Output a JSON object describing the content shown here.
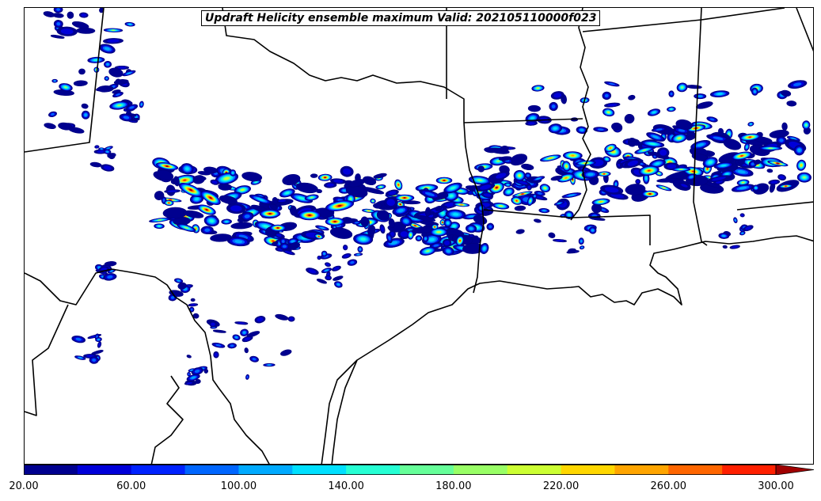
{
  "title": "Updraft Helicity ensemble maximum Valid: 202105110000f023",
  "colorbar": {
    "levels": [
      20,
      40,
      60,
      80,
      100,
      120,
      140,
      160,
      180,
      200,
      220,
      240,
      260,
      280,
      300
    ],
    "colors": [
      "#00008f",
      "#0000d9",
      "#0022ff",
      "#0066ff",
      "#00aaff",
      "#00e0ff",
      "#26ffd4",
      "#66ff99",
      "#99ff66",
      "#ccff33",
      "#ffd700",
      "#ffa500",
      "#ff6600",
      "#ff2000",
      "#a00000"
    ],
    "extend": "max",
    "tick_labels": [
      "20.00",
      "60.00",
      "100.00",
      "140.00",
      "180.00",
      "220.00",
      "260.00",
      "300.00"
    ],
    "tick_values": [
      20,
      60,
      100,
      140,
      180,
      220,
      260,
      300
    ]
  },
  "legend_colors": {
    "background": "#ffffff",
    "borders": "#000000"
  }
}
